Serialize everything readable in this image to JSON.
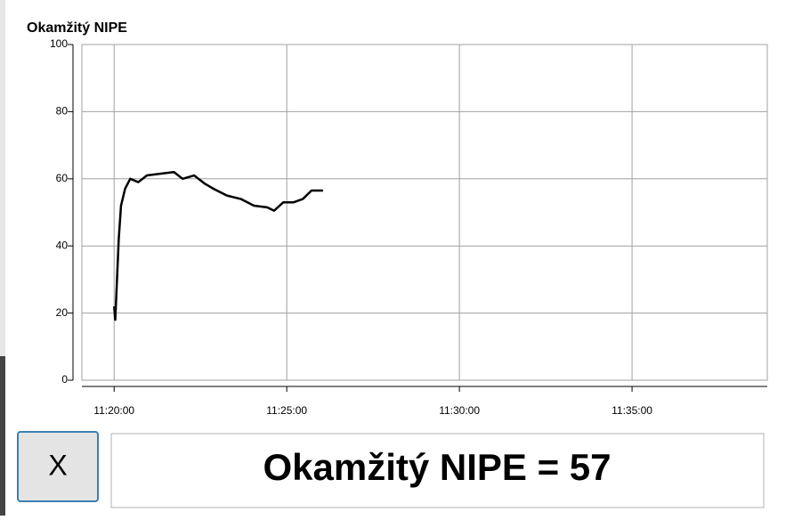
{
  "window": {
    "button_label": "X",
    "status_text": "Okamžitý NIPE = 57"
  },
  "chart_data": {
    "type": "line",
    "title": "Okamžitý NIPE",
    "x": [
      "11:20:00",
      "11:20:02",
      "11:20:05",
      "11:20:08",
      "11:20:12",
      "11:20:19",
      "11:20:28",
      "11:20:42",
      "11:20:57",
      "11:21:20",
      "11:21:44",
      "11:21:59",
      "11:22:19",
      "11:22:38",
      "11:22:53",
      "11:23:16",
      "11:23:40",
      "11:24:03",
      "11:24:26",
      "11:24:38",
      "11:24:54",
      "11:25:12",
      "11:25:28",
      "11:25:43",
      "11:26:03"
    ],
    "series": [
      {
        "name": "Okamžitý NIPE",
        "color": "#000000",
        "values": [
          22,
          18,
          30,
          42,
          52,
          57,
          60,
          59,
          61,
          61.5,
          62,
          60,
          61,
          58.5,
          57,
          55,
          54,
          52,
          51.5,
          50.5,
          53,
          53,
          54,
          56.5,
          56.5
        ]
      }
    ],
    "xlim": [
      "11:19:04",
      "11:38:55"
    ],
    "xticks": [
      "11:20:00",
      "11:25:00",
      "11:30:00",
      "11:35:00"
    ],
    "ylim": [
      0,
      100
    ],
    "yticks": [
      0,
      20,
      40,
      60,
      80,
      100
    ],
    "grid": true
  }
}
